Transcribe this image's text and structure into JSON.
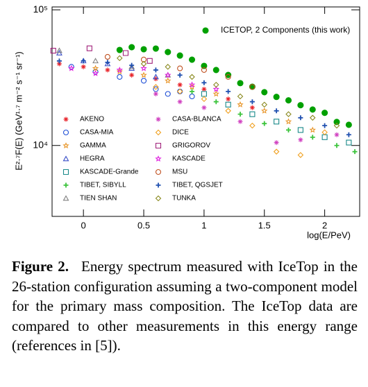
{
  "chart_data": {
    "type": "scatter",
    "ylabel": "E²·⁷F(E) (GeV¹·⁷ m⁻² s⁻¹ sr⁻¹)",
    "xlabel": "log(E/PeV)",
    "xlim": [
      -0.26,
      2.29
    ],
    "xticks": [
      0,
      0.5,
      1,
      1.5,
      2
    ],
    "ylim": [
      3000,
      105000
    ],
    "ylog": true,
    "yticks": [
      {
        "value": 10000,
        "label": "10⁴"
      },
      {
        "value": 100000,
        "label": "10⁵"
      }
    ],
    "series": [
      {
        "name": "ICETOP, 2 Components (this work)",
        "color": "#00a000",
        "marker": "dot",
        "x": [
          0.3,
          0.4,
          0.5,
          0.6,
          0.7,
          0.8,
          0.9,
          1.0,
          1.1,
          1.2,
          1.3,
          1.4,
          1.5,
          1.6,
          1.7,
          1.8,
          1.9,
          2.0,
          2.1,
          2.2
        ],
        "values": [
          50600,
          53000,
          51200,
          51800,
          48800,
          46000,
          42900,
          38600,
          36000,
          33100,
          28800,
          27100,
          24700,
          22800,
          21500,
          19800,
          18400,
          17400,
          14900,
          14200
        ]
      },
      {
        "name": "AKENO",
        "color": "#e8232a",
        "marker": "asterisk",
        "x": [
          -0.2,
          0,
          0.2,
          0.4,
          0.6,
          0.8,
          1.0,
          1.2,
          1.4
        ],
        "values": [
          40000,
          38000,
          36000,
          33000,
          31000,
          28000,
          26000,
          22000,
          19000
        ]
      },
      {
        "name": "CASA-MIA",
        "color": "#1f4fd6",
        "marker": "circle",
        "x": [
          -0.1,
          0.1,
          0.3,
          0.5,
          0.6,
          0.7,
          0.8,
          0.9
        ],
        "values": [
          38000,
          35000,
          32000,
          30000,
          26000,
          24000,
          25000,
          23000
        ]
      },
      {
        "name": "GAMMA",
        "color": "#e8962a",
        "marker": "star",
        "x": [
          0.1,
          0.3,
          0.5,
          0.7,
          0.9,
          1.1,
          1.3,
          1.5,
          1.7,
          1.9
        ],
        "values": [
          37000,
          35000,
          33000,
          30000,
          27000,
          24000,
          20000,
          18000,
          15000,
          13000
        ]
      },
      {
        "name": "HEGRA",
        "color": "#3a4fc8",
        "marker": "triangle",
        "x": [
          -0.2,
          0,
          0.2,
          0.4,
          0.6
        ],
        "values": [
          48000,
          42000,
          40000,
          37000,
          32000
        ]
      },
      {
        "name": "KASCADE-Grande",
        "color": "#1a8a8a",
        "marker": "square",
        "x": [
          1.0,
          1.2,
          1.4,
          1.6,
          1.8,
          2.0,
          2.2
        ],
        "values": [
          24000,
          20000,
          17000,
          15000,
          13000,
          11500,
          10500
        ]
      },
      {
        "name": "TIBET, SIBYLL",
        "color": "#3cc43c",
        "marker": "cross",
        "x": [
          0.9,
          1.1,
          1.3,
          1.5,
          1.7,
          1.9,
          2.1,
          2.25
        ],
        "values": [
          25000,
          21000,
          17000,
          14500,
          13000,
          11500,
          10000,
          9000
        ]
      },
      {
        "name": "TIEN SHAN",
        "color": "#808080",
        "marker": "triangle",
        "x": [
          -0.2,
          0.1,
          0.4,
          0.7
        ],
        "values": [
          50000,
          42000,
          38000,
          33000
        ]
      },
      {
        "name": "CASA-BLANCA",
        "color": "#d040c0",
        "marker": "asterisk",
        "x": [
          0.6,
          0.8,
          1.0,
          1.3,
          1.6,
          1.8,
          2.1
        ],
        "values": [
          24000,
          21000,
          19000,
          15000,
          10500,
          11000,
          12000
        ]
      },
      {
        "name": "DICE",
        "color": "#f0a020",
        "marker": "diamond",
        "x": [
          0.6,
          0.8,
          1.0,
          1.2,
          1.4,
          1.6,
          1.8,
          2.0
        ],
        "values": [
          27000,
          25000,
          22000,
          18000,
          14000,
          9000,
          8500,
          12500
        ]
      },
      {
        "name": "GRIGOROV",
        "color": "#a0207a",
        "marker": "square",
        "x": [
          -0.25,
          0.05,
          0.35,
          0.55
        ],
        "values": [
          50000,
          52000,
          48000,
          42000
        ]
      },
      {
        "name": "KASCADE",
        "color": "#e020e0",
        "marker": "star",
        "x": [
          -0.1,
          0.1,
          0.3,
          0.5,
          0.7,
          0.9,
          1.1
        ],
        "values": [
          37000,
          34000,
          36000,
          37000,
          33000,
          28000,
          26000
        ]
      },
      {
        "name": "MSU",
        "color": "#c05020",
        "marker": "circle",
        "x": [
          0.2,
          0.5,
          0.8,
          1.0,
          1.2,
          1.4
        ],
        "values": [
          45000,
          43000,
          37000,
          36000,
          32000,
          27000
        ]
      },
      {
        "name": "TIBET, QGSJET",
        "color": "#2050b0",
        "marker": "cross",
        "x": [
          -0.2,
          0,
          0.2,
          0.4,
          0.6,
          0.8,
          1.0,
          1.2,
          1.4,
          1.6,
          1.8,
          2.0,
          2.2
        ],
        "values": [
          42000,
          42000,
          41000,
          39000,
          36000,
          33000,
          29000,
          25000,
          21000,
          18000,
          16000,
          14000,
          12000
        ]
      },
      {
        "name": "TUNKA",
        "color": "#8a8a20",
        "marker": "diamond",
        "x": [
          0.3,
          0.5,
          0.7,
          0.9,
          1.1,
          1.3,
          1.5,
          1.7,
          1.9,
          2.1
        ],
        "values": [
          44000,
          40000,
          38000,
          32000,
          28000,
          23000,
          20000,
          17000,
          16000,
          14000
        ]
      }
    ]
  },
  "caption": {
    "label": "Figure 2.",
    "text": "Energy spectrum measured with IceTop in the 26-station configuration assuming a two-component model for the primary mass composition. The IceTop data are compared to other measurements in this energy range (references in [5])."
  }
}
